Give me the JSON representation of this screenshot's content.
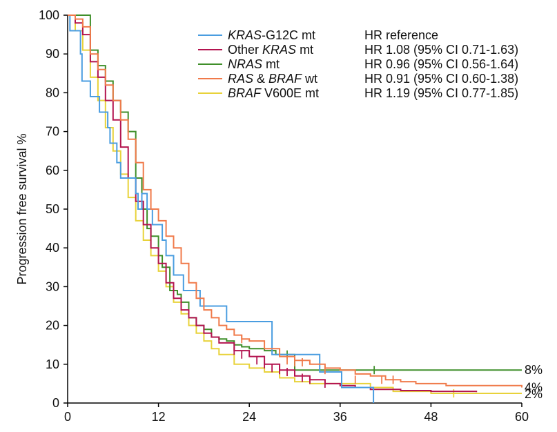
{
  "chart_data": {
    "type": "line",
    "title": "",
    "xlabel": "",
    "ylabel": "Progression free survival %",
    "xlim": [
      0,
      60
    ],
    "ylim": [
      0,
      100
    ],
    "xticks": [
      "0",
      "12",
      "24",
      "36",
      "48",
      "60"
    ],
    "yticks": [
      "0",
      "10",
      "20",
      "30",
      "40",
      "50",
      "60",
      "70",
      "80",
      "90",
      "100"
    ],
    "legend_position": "top-right",
    "series": [
      {
        "name_italic": "KRAS",
        "name_plain": "-G12C mt",
        "hr": "HR reference",
        "color": "#4a9de0",
        "points": [
          [
            0,
            100
          ],
          [
            0.3,
            96
          ],
          [
            1.5,
            96
          ],
          [
            1.7,
            90
          ],
          [
            1.9,
            83
          ],
          [
            2.8,
            83
          ],
          [
            3,
            79
          ],
          [
            4,
            79
          ],
          [
            4.2,
            75
          ],
          [
            5,
            75
          ],
          [
            5.3,
            71
          ],
          [
            5.6,
            67
          ],
          [
            6.2,
            67
          ],
          [
            6.5,
            62
          ],
          [
            7,
            58
          ],
          [
            8.7,
            58
          ],
          [
            9,
            54
          ],
          [
            9.3,
            50
          ],
          [
            9.8,
            54
          ],
          [
            10.5,
            50
          ],
          [
            11.2,
            46
          ],
          [
            12.5,
            42
          ],
          [
            13,
            38
          ],
          [
            13.7,
            38
          ],
          [
            14,
            33
          ],
          [
            15,
            33
          ],
          [
            15.3,
            29
          ],
          [
            17,
            29
          ],
          [
            17.5,
            25
          ],
          [
            20.5,
            25
          ],
          [
            21,
            21
          ],
          [
            26.5,
            21
          ],
          [
            27,
            12.5
          ],
          [
            33,
            12.5
          ],
          [
            33.3,
            8
          ],
          [
            36,
            8
          ],
          [
            36.2,
            4
          ],
          [
            40.2,
            4
          ],
          [
            40.4,
            0
          ]
        ],
        "censors": []
      },
      {
        "name_prefix": "Other ",
        "name_italic": "KRAS",
        "name_plain": " mt",
        "hr": "HR 1.08 (95% CI 0.71-1.63)",
        "color": "#b3134f",
        "points": [
          [
            0,
            100
          ],
          [
            1,
            98
          ],
          [
            2,
            95
          ],
          [
            3,
            88
          ],
          [
            4,
            84
          ],
          [
            5,
            78
          ],
          [
            6,
            73
          ],
          [
            7,
            66
          ],
          [
            8,
            58
          ],
          [
            9,
            52
          ],
          [
            10,
            46
          ],
          [
            11,
            40
          ],
          [
            12,
            36
          ],
          [
            13,
            31
          ],
          [
            14,
            27
          ],
          [
            15,
            24
          ],
          [
            16,
            22
          ],
          [
            17,
            20
          ],
          [
            18,
            18
          ],
          [
            19,
            17
          ],
          [
            20,
            15.5
          ],
          [
            22,
            13.5
          ],
          [
            24,
            12
          ],
          [
            26,
            10
          ],
          [
            28,
            8.5
          ],
          [
            30,
            7
          ],
          [
            32,
            6
          ],
          [
            34,
            5
          ],
          [
            36,
            4.5
          ],
          [
            38,
            4
          ],
          [
            40,
            3.5
          ],
          [
            44,
            3.2
          ],
          [
            48,
            3
          ],
          [
            54,
            2.8
          ]
        ],
        "censors": [
          [
            22,
            13.5
          ],
          [
            23,
            12.5
          ],
          [
            25,
            11
          ],
          [
            26,
            10
          ],
          [
            27,
            9
          ],
          [
            28,
            8.5
          ],
          [
            29,
            8
          ],
          [
            31,
            6.5
          ],
          [
            32,
            6
          ],
          [
            34,
            5
          ]
        ]
      },
      {
        "name_italic": "NRAS",
        "name_plain": " mt",
        "hr": "HR 0.96 (95% CI 0.56-1.64)",
        "color": "#3f8f2a",
        "points": [
          [
            0,
            100
          ],
          [
            2.5,
            100
          ],
          [
            3,
            91
          ],
          [
            4,
            87
          ],
          [
            5,
            83
          ],
          [
            6,
            78
          ],
          [
            7,
            75
          ],
          [
            8,
            70
          ],
          [
            9,
            58
          ],
          [
            9.8,
            50
          ],
          [
            10.5,
            45
          ],
          [
            11,
            43
          ],
          [
            12,
            38
          ],
          [
            12.5,
            35
          ],
          [
            13.5,
            29
          ],
          [
            14.5,
            28
          ],
          [
            15,
            26
          ],
          [
            16,
            22
          ],
          [
            17,
            20
          ],
          [
            18,
            19
          ],
          [
            19,
            17
          ],
          [
            20,
            16.5
          ],
          [
            21,
            16
          ],
          [
            22,
            15
          ],
          [
            23,
            14.5
          ],
          [
            24,
            14
          ],
          [
            26,
            13.5
          ],
          [
            27.5,
            12.5
          ],
          [
            30,
            8.5
          ],
          [
            60,
            8.5
          ]
        ],
        "censors": [
          [
            29,
            12.5
          ],
          [
            40.5,
            8.5
          ]
        ]
      },
      {
        "name_italic": "RAS",
        "name_mid": " & ",
        "name_italic2": "BRAF",
        "name_plain": " wt",
        "hr": "HR 0.91 (95% CI 0.60-1.38)",
        "color": "#f07a4a",
        "points": [
          [
            0,
            100
          ],
          [
            1,
            99
          ],
          [
            2,
            97
          ],
          [
            3,
            90
          ],
          [
            4,
            86
          ],
          [
            5,
            82
          ],
          [
            6,
            78
          ],
          [
            7,
            73
          ],
          [
            8,
            68
          ],
          [
            9,
            62
          ],
          [
            10,
            55
          ],
          [
            11,
            50
          ],
          [
            12,
            47
          ],
          [
            13,
            43
          ],
          [
            14,
            40
          ],
          [
            15,
            36
          ],
          [
            16,
            31
          ],
          [
            17,
            27
          ],
          [
            18,
            24
          ],
          [
            19,
            22
          ],
          [
            20,
            20
          ],
          [
            21,
            19
          ],
          [
            22,
            17.5
          ],
          [
            23,
            16.5
          ],
          [
            24,
            16
          ],
          [
            26,
            14
          ],
          [
            28,
            12
          ],
          [
            30,
            11
          ],
          [
            32,
            10
          ],
          [
            34,
            9
          ],
          [
            36,
            8.5
          ],
          [
            38,
            7.5
          ],
          [
            40,
            7
          ],
          [
            42,
            6
          ],
          [
            44,
            5.5
          ],
          [
            46,
            5
          ],
          [
            50,
            4.5
          ],
          [
            60,
            4
          ]
        ],
        "censors": [
          [
            23,
            16.5
          ],
          [
            29,
            11
          ],
          [
            30,
            10.5
          ],
          [
            31,
            10.5
          ],
          [
            34,
            8.5
          ],
          [
            38,
            6
          ],
          [
            41.5,
            6
          ],
          [
            43,
            6
          ]
        ]
      },
      {
        "name_italic": "BRAF",
        "name_plain": " V600E mt",
        "hr": "HR 1.19 (95% CI 0.77-1.85)",
        "color": "#e8d23a",
        "points": [
          [
            0,
            100
          ],
          [
            1,
            96
          ],
          [
            2,
            91
          ],
          [
            3,
            84
          ],
          [
            4,
            78
          ],
          [
            5,
            71
          ],
          [
            6,
            65
          ],
          [
            7,
            59
          ],
          [
            8,
            53
          ],
          [
            9,
            47
          ],
          [
            10,
            42
          ],
          [
            11,
            38
          ],
          [
            12,
            34
          ],
          [
            13,
            30
          ],
          [
            14,
            26
          ],
          [
            15,
            23
          ],
          [
            16,
            20
          ],
          [
            17,
            18
          ],
          [
            18,
            16
          ],
          [
            19,
            14
          ],
          [
            20,
            12.5
          ],
          [
            22,
            10
          ],
          [
            24,
            9
          ],
          [
            26,
            8
          ],
          [
            28,
            6.5
          ],
          [
            30,
            5.5
          ],
          [
            32,
            5
          ],
          [
            36,
            5
          ],
          [
            40,
            4
          ],
          [
            43,
            3
          ],
          [
            48,
            2.5
          ],
          [
            60,
            2.5
          ]
        ],
        "censors": [
          [
            51,
            2.5
          ]
        ]
      }
    ],
    "end_labels": [
      "8%",
      "4%",
      "2%"
    ]
  }
}
